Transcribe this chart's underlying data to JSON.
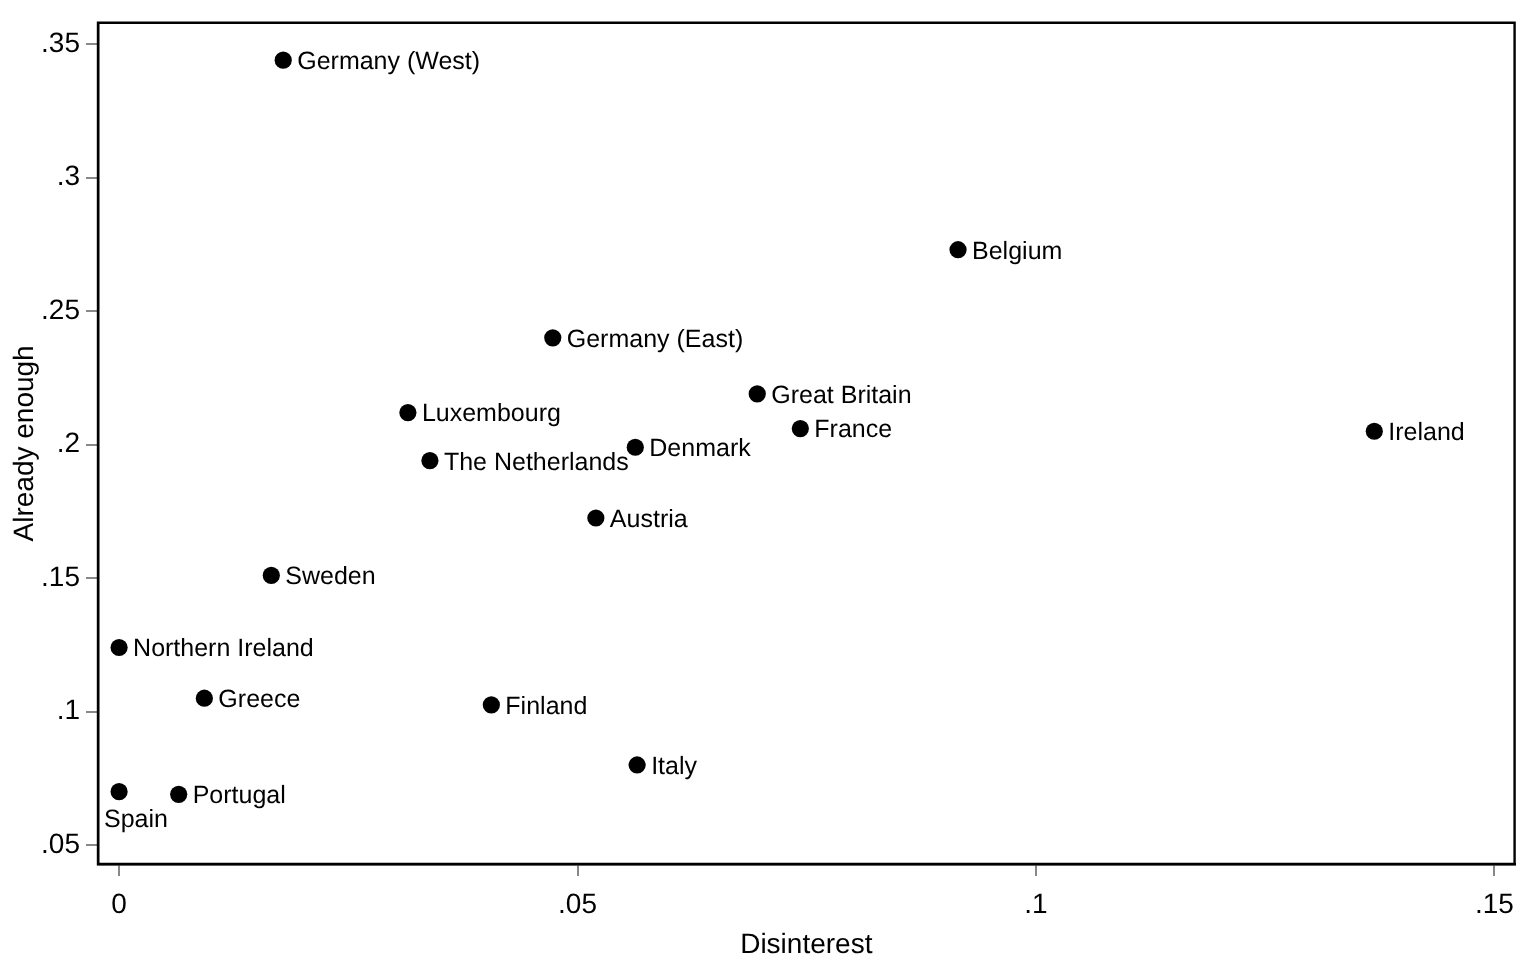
{
  "chart_data": {
    "type": "scatter",
    "xlabel": "Disinterest",
    "ylabel": "Already enough",
    "xlim": [
      -0.0023,
      0.1522
    ],
    "ylim": [
      0.0429,
      0.358
    ],
    "xticks": [
      {
        "value": 0,
        "label": "0"
      },
      {
        "value": 0.05,
        "label": ".05"
      },
      {
        "value": 0.1,
        "label": ".1"
      },
      {
        "value": 0.15,
        "label": ".15"
      }
    ],
    "yticks": [
      {
        "value": 0.05,
        "label": ".05"
      },
      {
        "value": 0.1,
        "label": ".1"
      },
      {
        "value": 0.15,
        "label": ".15"
      },
      {
        "value": 0.2,
        "label": ".2"
      },
      {
        "value": 0.25,
        "label": ".25"
      },
      {
        "value": 0.3,
        "label": ".3"
      },
      {
        "value": 0.35,
        "label": ".35"
      }
    ],
    "grid": false,
    "legend": false,
    "marker": "circle",
    "series": [
      {
        "color": "#000000",
        "x": [
          0.0179,
          0.0473,
          0.0315,
          0.0339,
          0.0563,
          0.0696,
          0.0743,
          0.0915,
          0.1369,
          0.052,
          0.0166,
          0,
          0.0093,
          0.0406,
          0.0565,
          0,
          0.0065
        ],
        "values": [
          0.344,
          0.24,
          0.212,
          0.194,
          0.199,
          0.219,
          0.206,
          0.273,
          0.205,
          0.1725,
          0.151,
          0.124,
          0.105,
          0.1025,
          0.08,
          0.07,
          0.069
        ]
      }
    ],
    "annotations": [
      {
        "text": "Germany (West)",
        "x": 0.0179,
        "y": 0.344
      },
      {
        "text": "Germany (East)",
        "x": 0.0473,
        "y": 0.24
      },
      {
        "text": "Luxembourg",
        "x": 0.0315,
        "y": 0.212
      },
      {
        "text": "The Netherlands",
        "x": 0.0339,
        "y": 0.194
      },
      {
        "text": "Denmark",
        "x": 0.0563,
        "y": 0.199
      },
      {
        "text": "Great Britain",
        "x": 0.0696,
        "y": 0.219
      },
      {
        "text": "France",
        "x": 0.0743,
        "y": 0.206
      },
      {
        "text": "Belgium",
        "x": 0.0915,
        "y": 0.273
      },
      {
        "text": "Ireland",
        "x": 0.1369,
        "y": 0.205
      },
      {
        "text": "Austria",
        "x": 0.052,
        "y": 0.1725
      },
      {
        "text": "Sweden",
        "x": 0.0166,
        "y": 0.151
      },
      {
        "text": "Northern Ireland",
        "x": 0,
        "y": 0.124
      },
      {
        "text": "Greece",
        "x": 0.0093,
        "y": 0.105
      },
      {
        "text": "Finland",
        "x": 0.0406,
        "y": 0.1025
      },
      {
        "text": "Italy",
        "x": 0.0565,
        "y": 0.08
      },
      {
        "text": "Spain",
        "x": 0,
        "y": 0.07
      },
      {
        "text": "Portugal",
        "x": 0.0065,
        "y": 0.069
      }
    ]
  }
}
